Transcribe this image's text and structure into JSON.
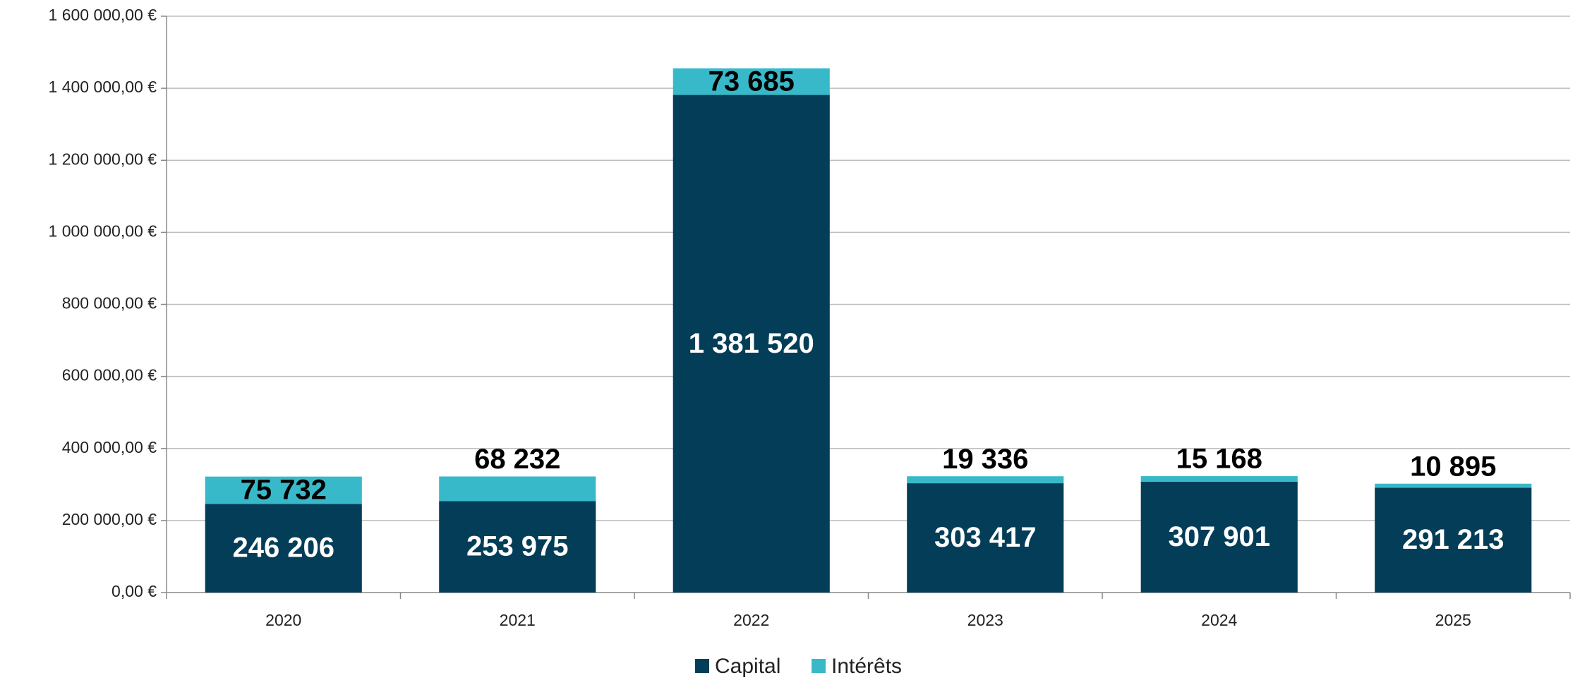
{
  "chart_data": {
    "type": "stacked_bar",
    "categories": [
      "2020",
      "2021",
      "2022",
      "2023",
      "2024",
      "2025"
    ],
    "series": [
      {
        "name": "Capital",
        "color": "#033d58",
        "values": [
          246206,
          253975,
          1381520,
          303417,
          307901,
          291213
        ],
        "value_labels": [
          "246 206",
          "253 975",
          "1 381 520",
          "303 417",
          "307 901",
          "291 213"
        ]
      },
      {
        "name": "Intérêts",
        "color": "#38b9c9",
        "values": [
          75732,
          68232,
          73685,
          19336,
          15168,
          10895
        ],
        "value_labels": [
          "75 732",
          "68 232",
          "73 685",
          "19 336",
          "15 168",
          "10 895"
        ]
      }
    ],
    "ylim": [
      0,
      1600000
    ],
    "yticks": [
      {
        "value": 0,
        "label": "0,00 €"
      },
      {
        "value": 200000,
        "label": "200 000,00 €"
      },
      {
        "value": 400000,
        "label": "400 000,00 €"
      },
      {
        "value": 600000,
        "label": "600 000,00 €"
      },
      {
        "value": 800000,
        "label": "800 000,00 €"
      },
      {
        "value": 1000000,
        "label": "1 000 000,00 €"
      },
      {
        "value": 1200000,
        "label": "1 200 000,00 €"
      },
      {
        "value": 1400000,
        "label": "1 400 000,00 €"
      },
      {
        "value": 1600000,
        "label": "1 600 000,00 €"
      }
    ],
    "grid": true,
    "legend": "bottom"
  }
}
